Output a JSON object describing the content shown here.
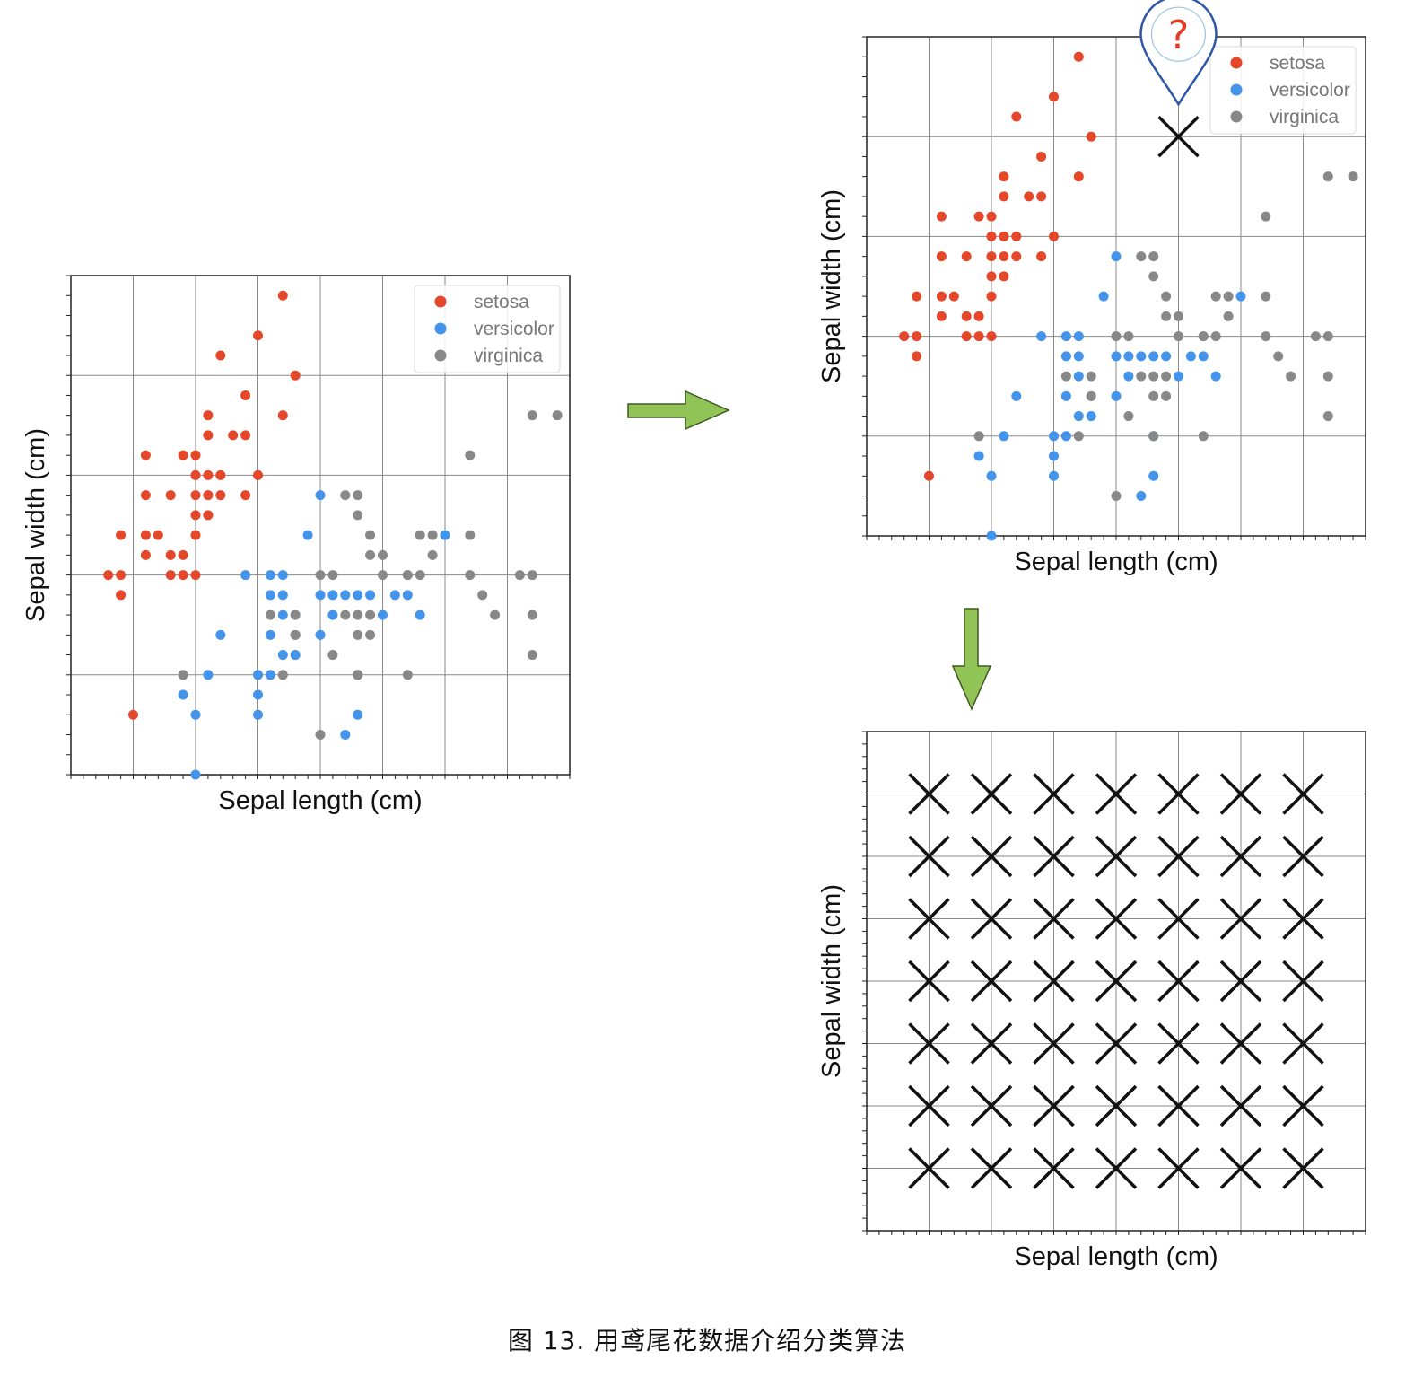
{
  "colors": {
    "setosa": "#e5472b",
    "versicolor": "#4394ea",
    "virginica": "#888888",
    "grid": "#8a8a8a",
    "arrow_fill": "#92c356",
    "arrow_stroke": "#3f5a22",
    "pin": "#2f57a8",
    "question": "#e23a25"
  },
  "icons": {
    "arrow_right": "arrow-right-icon",
    "arrow_down": "arrow-down-icon",
    "pin": "location-pin-icon",
    "question": "question-mark-icon",
    "new_point": "cross-marker-icon"
  },
  "caption": "图 13. 用鸢尾花数据介绍分类算法",
  "chart_data": [
    {
      "id": "dataset",
      "type": "scatter",
      "xlabel": "Sepal length (cm)",
      "ylabel": "Sepal width (cm)",
      "xlim": [
        4,
        8
      ],
      "ylim": [
        2,
        4.5
      ],
      "grid": true,
      "legend_position": "top-right",
      "series": [
        {
          "name": "setosa",
          "points": [
            [
              4.3,
              3.0
            ],
            [
              4.4,
              2.9
            ],
            [
              4.4,
              3.0
            ],
            [
              4.4,
              3.2
            ],
            [
              4.5,
              2.3
            ],
            [
              4.6,
              3.1
            ],
            [
              4.6,
              3.2
            ],
            [
              4.6,
              3.4
            ],
            [
              4.6,
              3.6
            ],
            [
              4.7,
              3.2
            ],
            [
              4.8,
              3.0
            ],
            [
              4.8,
              3.1
            ],
            [
              4.8,
              3.4
            ],
            [
              4.9,
              3.0
            ],
            [
              4.9,
              3.1
            ],
            [
              4.9,
              3.6
            ],
            [
              5.0,
              3.0
            ],
            [
              5.0,
              3.2
            ],
            [
              5.0,
              3.3
            ],
            [
              5.0,
              3.4
            ],
            [
              5.0,
              3.5
            ],
            [
              5.0,
              3.6
            ],
            [
              5.1,
              3.3
            ],
            [
              5.1,
              3.4
            ],
            [
              5.1,
              3.5
            ],
            [
              5.1,
              3.7
            ],
            [
              5.1,
              3.8
            ],
            [
              5.2,
              3.4
            ],
            [
              5.2,
              3.5
            ],
            [
              5.2,
              4.1
            ],
            [
              5.3,
              3.7
            ],
            [
              5.4,
              3.7
            ],
            [
              5.4,
              3.9
            ],
            [
              5.4,
              3.4
            ],
            [
              5.5,
              3.5
            ],
            [
              5.5,
              4.2
            ],
            [
              5.7,
              3.8
            ],
            [
              5.7,
              4.4
            ],
            [
              5.8,
              4.0
            ]
          ]
        },
        {
          "name": "versicolor",
          "points": [
            [
              4.9,
              2.4
            ],
            [
              5.0,
              2.0
            ],
            [
              5.0,
              2.3
            ],
            [
              5.1,
              2.5
            ],
            [
              5.2,
              2.7
            ],
            [
              5.4,
              3.0
            ],
            [
              5.5,
              2.3
            ],
            [
              5.5,
              2.4
            ],
            [
              5.5,
              2.5
            ],
            [
              5.6,
              2.5
            ],
            [
              5.6,
              2.7
            ],
            [
              5.6,
              2.9
            ],
            [
              5.6,
              3.0
            ],
            [
              5.7,
              2.6
            ],
            [
              5.7,
              2.8
            ],
            [
              5.7,
              2.9
            ],
            [
              5.7,
              3.0
            ],
            [
              5.8,
              2.6
            ],
            [
              5.8,
              2.7
            ],
            [
              5.9,
              3.2
            ],
            [
              6.0,
              2.7
            ],
            [
              6.0,
              2.9
            ],
            [
              6.0,
              3.4
            ],
            [
              6.1,
              2.8
            ],
            [
              6.1,
              2.9
            ],
            [
              6.2,
              2.2
            ],
            [
              6.2,
              2.9
            ],
            [
              6.3,
              2.3
            ],
            [
              6.3,
              2.5
            ],
            [
              6.3,
              2.9
            ],
            [
              6.4,
              2.9
            ],
            [
              6.5,
              2.8
            ],
            [
              6.6,
              2.9
            ],
            [
              6.7,
              2.9
            ],
            [
              6.7,
              3.0
            ],
            [
              6.8,
              2.8
            ],
            [
              7.0,
              3.2
            ]
          ]
        },
        {
          "name": "virginica",
          "points": [
            [
              4.9,
              2.5
            ],
            [
              5.6,
              2.8
            ],
            [
              5.7,
              2.5
            ],
            [
              5.8,
              2.7
            ],
            [
              5.8,
              2.8
            ],
            [
              6.0,
              2.2
            ],
            [
              6.0,
              3.0
            ],
            [
              6.1,
              2.6
            ],
            [
              6.1,
              3.0
            ],
            [
              6.2,
              2.8
            ],
            [
              6.2,
              3.4
            ],
            [
              6.3,
              2.5
            ],
            [
              6.3,
              2.7
            ],
            [
              6.3,
              2.8
            ],
            [
              6.3,
              3.3
            ],
            [
              6.3,
              3.4
            ],
            [
              6.4,
              2.7
            ],
            [
              6.4,
              2.8
            ],
            [
              6.4,
              3.1
            ],
            [
              6.4,
              3.2
            ],
            [
              6.5,
              3.0
            ],
            [
              6.5,
              3.1
            ],
            [
              6.7,
              2.5
            ],
            [
              6.7,
              3.0
            ],
            [
              6.8,
              3.0
            ],
            [
              6.8,
              3.2
            ],
            [
              6.9,
              3.1
            ],
            [
              6.9,
              3.2
            ],
            [
              7.2,
              3.0
            ],
            [
              7.2,
              3.2
            ],
            [
              7.2,
              3.6
            ],
            [
              7.3,
              2.9
            ],
            [
              7.4,
              2.8
            ],
            [
              7.6,
              3.0
            ],
            [
              7.7,
              2.6
            ],
            [
              7.7,
              2.8
            ],
            [
              7.7,
              3.0
            ],
            [
              7.7,
              3.8
            ],
            [
              7.9,
              3.8
            ]
          ]
        }
      ]
    },
    {
      "id": "query",
      "type": "scatter",
      "xlabel": "Sepal length (cm)",
      "ylabel": "Sepal width (cm)",
      "xlim": [
        4,
        8
      ],
      "ylim": [
        2,
        4.5
      ],
      "grid": true,
      "legend_position": "top-right",
      "uses_series_of": "dataset",
      "query_point": [
        6.5,
        4.0
      ]
    },
    {
      "id": "mesh",
      "type": "scatter",
      "xlabel": "Sepal length (cm)",
      "ylabel": "Sepal width (cm)",
      "xlim": [
        4,
        8
      ],
      "ylim": [
        2,
        6
      ],
      "grid": true,
      "mesh_x": [
        4.5,
        5.0,
        5.5,
        6.0,
        6.5,
        7.0,
        7.5
      ],
      "mesh_y": [
        2.5,
        3.0,
        3.5,
        4.0,
        4.5,
        5.0,
        5.5
      ]
    }
  ]
}
